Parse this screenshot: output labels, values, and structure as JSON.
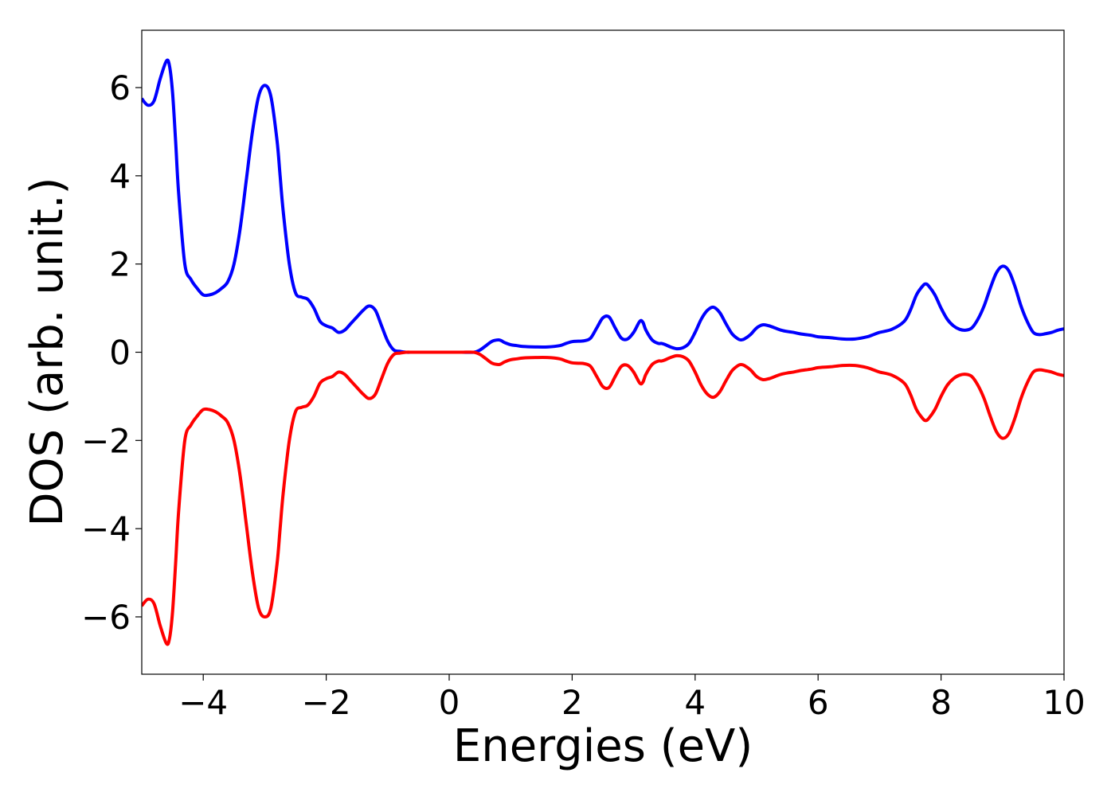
{
  "chart_data": {
    "type": "line",
    "title": "",
    "xlabel": "Energies (eV)",
    "ylabel": "DOS (arb. unit.)",
    "xlim": [
      -5,
      10
    ],
    "ylim": [
      -7.3,
      7.3
    ],
    "xticks": [
      -4,
      -2,
      0,
      2,
      4,
      6,
      8,
      10
    ],
    "yticks": [
      -6,
      -4,
      -2,
      0,
      2,
      4,
      6
    ],
    "xtick_labels": [
      "−4",
      "−2",
      "0",
      "2",
      "4",
      "6",
      "8",
      "10"
    ],
    "ytick_labels": [
      "−6",
      "−4",
      "−2",
      "0",
      "2",
      "4",
      "6"
    ],
    "grid": false,
    "legend": "none",
    "series": [
      {
        "color": "#0000ff",
        "x": [
          -5.0,
          -4.9,
          -4.8,
          -4.7,
          -4.6,
          -4.55,
          -4.5,
          -4.45,
          -4.4,
          -4.3,
          -4.2,
          -4.1,
          -4.0,
          -3.9,
          -3.8,
          -3.7,
          -3.6,
          -3.5,
          -3.4,
          -3.3,
          -3.2,
          -3.1,
          -3.0,
          -2.9,
          -2.8,
          -2.75,
          -2.7,
          -2.6,
          -2.5,
          -2.4,
          -2.3,
          -2.2,
          -2.1,
          -2.0,
          -1.9,
          -1.8,
          -1.7,
          -1.6,
          -1.5,
          -1.4,
          -1.3,
          -1.2,
          -1.1,
          -1.0,
          -0.9,
          -0.8,
          -0.7,
          -0.6,
          -0.5,
          -0.4,
          -0.2,
          0.0,
          0.2,
          0.4,
          0.5,
          0.6,
          0.7,
          0.8,
          0.85,
          0.9,
          1.0,
          1.1,
          1.2,
          1.4,
          1.6,
          1.8,
          1.9,
          2.0,
          2.1,
          2.2,
          2.3,
          2.4,
          2.5,
          2.6,
          2.7,
          2.8,
          2.9,
          3.0,
          3.1,
          3.15,
          3.2,
          3.3,
          3.4,
          3.45,
          3.5,
          3.6,
          3.7,
          3.8,
          3.9,
          4.0,
          4.1,
          4.2,
          4.3,
          4.4,
          4.5,
          4.6,
          4.7,
          4.75,
          4.8,
          4.9,
          5.0,
          5.1,
          5.2,
          5.3,
          5.4,
          5.5,
          5.6,
          5.7,
          5.8,
          5.9,
          6.0,
          6.2,
          6.4,
          6.6,
          6.8,
          6.9,
          7.0,
          7.2,
          7.4,
          7.5,
          7.6,
          7.7,
          7.75,
          7.8,
          7.9,
          8.0,
          8.1,
          8.2,
          8.3,
          8.4,
          8.5,
          8.6,
          8.7,
          8.8,
          8.9,
          9.0,
          9.1,
          9.2,
          9.3,
          9.4,
          9.5,
          9.6,
          9.7,
          9.8,
          9.9,
          10.0
        ],
        "y": [
          5.75,
          5.6,
          5.7,
          6.2,
          6.6,
          6.5,
          5.9,
          4.8,
          3.6,
          2.0,
          1.65,
          1.45,
          1.3,
          1.3,
          1.35,
          1.45,
          1.6,
          2.0,
          2.8,
          3.9,
          5.0,
          5.8,
          6.05,
          5.8,
          4.8,
          4.0,
          3.2,
          2.0,
          1.35,
          1.25,
          1.2,
          1.0,
          0.7,
          0.6,
          0.55,
          0.45,
          0.5,
          0.65,
          0.8,
          0.95,
          1.05,
          0.95,
          0.6,
          0.25,
          0.05,
          0.02,
          0.0,
          0.0,
          0.0,
          0.0,
          0.0,
          0.0,
          0.0,
          0.0,
          0.05,
          0.15,
          0.25,
          0.28,
          0.26,
          0.22,
          0.17,
          0.15,
          0.13,
          0.12,
          0.12,
          0.15,
          0.2,
          0.24,
          0.25,
          0.26,
          0.32,
          0.55,
          0.78,
          0.8,
          0.55,
          0.32,
          0.3,
          0.45,
          0.7,
          0.68,
          0.5,
          0.28,
          0.2,
          0.2,
          0.18,
          0.12,
          0.08,
          0.1,
          0.2,
          0.45,
          0.75,
          0.95,
          1.02,
          0.9,
          0.65,
          0.42,
          0.3,
          0.28,
          0.3,
          0.4,
          0.55,
          0.62,
          0.6,
          0.55,
          0.5,
          0.47,
          0.45,
          0.42,
          0.4,
          0.38,
          0.35,
          0.33,
          0.3,
          0.3,
          0.35,
          0.4,
          0.45,
          0.52,
          0.7,
          0.95,
          1.3,
          1.5,
          1.55,
          1.5,
          1.3,
          1.0,
          0.75,
          0.6,
          0.52,
          0.5,
          0.55,
          0.75,
          1.05,
          1.45,
          1.8,
          1.95,
          1.85,
          1.5,
          1.05,
          0.7,
          0.45,
          0.4,
          0.42,
          0.45,
          0.5,
          0.53
        ]
      },
      {
        "color": "#ff0000",
        "x": [
          -5.0,
          -4.9,
          -4.8,
          -4.7,
          -4.6,
          -4.55,
          -4.5,
          -4.45,
          -4.4,
          -4.3,
          -4.2,
          -4.1,
          -4.0,
          -3.9,
          -3.8,
          -3.7,
          -3.6,
          -3.5,
          -3.4,
          -3.3,
          -3.2,
          -3.1,
          -3.0,
          -2.9,
          -2.8,
          -2.75,
          -2.7,
          -2.6,
          -2.5,
          -2.4,
          -2.3,
          -2.2,
          -2.1,
          -2.0,
          -1.9,
          -1.8,
          -1.7,
          -1.6,
          -1.5,
          -1.4,
          -1.3,
          -1.2,
          -1.1,
          -1.0,
          -0.9,
          -0.8,
          -0.7,
          -0.6,
          -0.5,
          -0.4,
          -0.2,
          0.0,
          0.2,
          0.4,
          0.5,
          0.6,
          0.7,
          0.8,
          0.85,
          0.9,
          1.0,
          1.1,
          1.2,
          1.4,
          1.6,
          1.8,
          1.9,
          2.0,
          2.1,
          2.2,
          2.3,
          2.4,
          2.5,
          2.6,
          2.7,
          2.8,
          2.9,
          3.0,
          3.1,
          3.15,
          3.2,
          3.3,
          3.4,
          3.45,
          3.5,
          3.6,
          3.7,
          3.8,
          3.9,
          4.0,
          4.1,
          4.2,
          4.3,
          4.4,
          4.5,
          4.6,
          4.7,
          4.75,
          4.8,
          4.9,
          5.0,
          5.1,
          5.2,
          5.3,
          5.4,
          5.5,
          5.6,
          5.7,
          5.8,
          5.9,
          6.0,
          6.2,
          6.4,
          6.6,
          6.8,
          6.9,
          7.0,
          7.2,
          7.4,
          7.5,
          7.6,
          7.7,
          7.75,
          7.8,
          7.9,
          8.0,
          8.1,
          8.2,
          8.3,
          8.4,
          8.5,
          8.6,
          8.7,
          8.8,
          8.9,
          9.0,
          9.1,
          9.2,
          9.3,
          9.4,
          9.5,
          9.6,
          9.7,
          9.8,
          9.9,
          10.0
        ],
        "y": [
          -5.75,
          -5.6,
          -5.7,
          -6.2,
          -6.6,
          -6.5,
          -5.9,
          -4.8,
          -3.6,
          -2.0,
          -1.65,
          -1.45,
          -1.3,
          -1.3,
          -1.35,
          -1.45,
          -1.6,
          -2.0,
          -2.8,
          -3.9,
          -5.0,
          -5.8,
          -6.0,
          -5.8,
          -4.8,
          -4.0,
          -3.2,
          -2.0,
          -1.35,
          -1.25,
          -1.2,
          -1.0,
          -0.7,
          -0.6,
          -0.55,
          -0.45,
          -0.5,
          -0.65,
          -0.8,
          -0.95,
          -1.05,
          -0.95,
          -0.6,
          -0.25,
          -0.05,
          -0.02,
          0.0,
          0.0,
          0.0,
          0.0,
          0.0,
          0.0,
          0.0,
          0.0,
          -0.05,
          -0.15,
          -0.25,
          -0.28,
          -0.26,
          -0.22,
          -0.17,
          -0.15,
          -0.13,
          -0.12,
          -0.12,
          -0.15,
          -0.2,
          -0.24,
          -0.25,
          -0.26,
          -0.32,
          -0.55,
          -0.78,
          -0.8,
          -0.55,
          -0.32,
          -0.3,
          -0.45,
          -0.7,
          -0.68,
          -0.5,
          -0.28,
          -0.2,
          -0.2,
          -0.18,
          -0.12,
          -0.08,
          -0.1,
          -0.2,
          -0.45,
          -0.75,
          -0.95,
          -1.02,
          -0.9,
          -0.65,
          -0.42,
          -0.3,
          -0.28,
          -0.3,
          -0.4,
          -0.55,
          -0.62,
          -0.6,
          -0.55,
          -0.5,
          -0.47,
          -0.45,
          -0.42,
          -0.4,
          -0.38,
          -0.35,
          -0.33,
          -0.3,
          -0.3,
          -0.35,
          -0.4,
          -0.45,
          -0.52,
          -0.7,
          -0.95,
          -1.3,
          -1.5,
          -1.55,
          -1.5,
          -1.3,
          -1.0,
          -0.75,
          -0.6,
          -0.52,
          -0.5,
          -0.55,
          -0.75,
          -1.05,
          -1.45,
          -1.8,
          -1.95,
          -1.85,
          -1.5,
          -1.05,
          -0.7,
          -0.45,
          -0.4,
          -0.42,
          -0.45,
          -0.5,
          -0.53
        ]
      }
    ]
  }
}
